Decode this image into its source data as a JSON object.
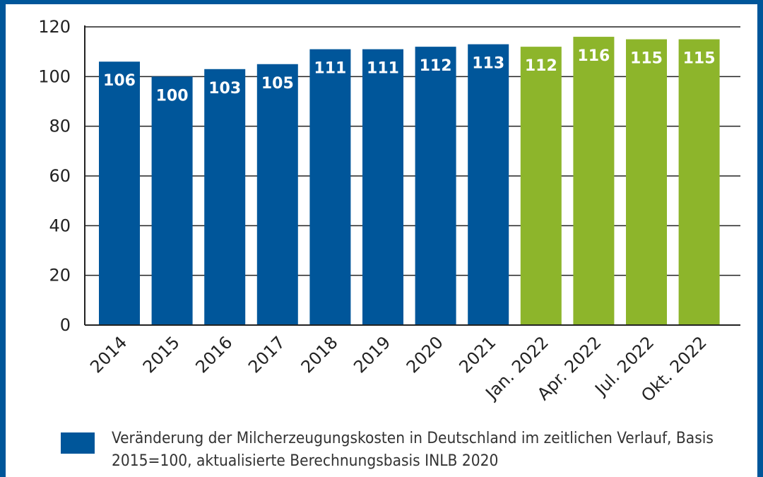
{
  "chart_data": {
    "type": "bar",
    "categories": [
      "2014",
      "2015",
      "2016",
      "2017",
      "2018",
      "2019",
      "2020",
      "2021",
      "Jan. 2022",
      "Apr. 2022",
      "Jul. 2022",
      "Okt. 2022"
    ],
    "values": [
      106,
      100,
      103,
      105,
      111,
      111,
      112,
      113,
      112,
      116,
      115,
      115
    ],
    "bar_colors": [
      "#00569a",
      "#00569a",
      "#00569a",
      "#00569a",
      "#00569a",
      "#00569a",
      "#00569a",
      "#00569a",
      "#8db52b",
      "#8db52b",
      "#8db52b",
      "#8db52b"
    ],
    "data_label_color": "#ffffff",
    "title": "",
    "xlabel": "",
    "ylabel": "",
    "ylim": [
      0,
      120
    ],
    "yticks": [
      0,
      20,
      40,
      60,
      80,
      100,
      120
    ],
    "grid": true,
    "legend_position": "bottom",
    "legend": [
      {
        "label": "Veränderung der Milcherzeugungskosten in Deutschland im zeitlichen Verlauf, Basis 2015=100, aktualisierte Berechnungsbasis INLB 2020",
        "color": "#00569a"
      }
    ]
  },
  "colors": {
    "frame": "#00569a",
    "primary": "#00569a",
    "secondary": "#8db52b"
  }
}
